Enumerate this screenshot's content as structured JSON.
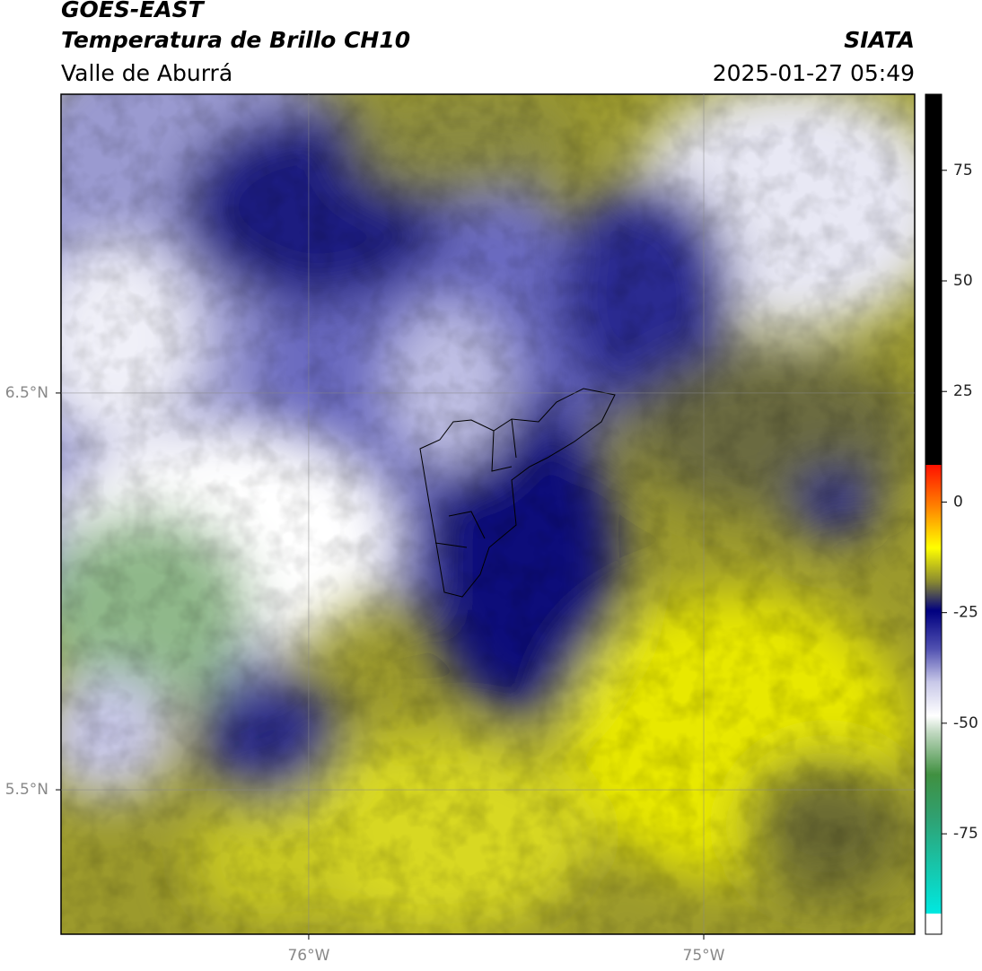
{
  "header": {
    "title": "GOES-EAST",
    "subtitle": "Temperatura de Brillo CH10",
    "region": "Valle de Aburrá",
    "source": "SIATA",
    "datetime": "2025-01-27 05:49"
  },
  "map": {
    "lonlim": [
      -76.627,
      -74.466
    ],
    "latlim": [
      5.136,
      7.253
    ],
    "lonticks": [
      {
        "value": -76,
        "label": "76°W"
      },
      {
        "value": -75,
        "label": "75°W"
      }
    ],
    "latticks": [
      {
        "value": 6.5,
        "label": "6.5°N"
      },
      {
        "value": 5.5,
        "label": "5.5°N"
      }
    ]
  },
  "colorbar": {
    "lim": [
      -97.7,
      92.2
    ],
    "ticks": [
      75,
      50,
      25,
      0,
      -25,
      -50,
      -75
    ]
  }
}
